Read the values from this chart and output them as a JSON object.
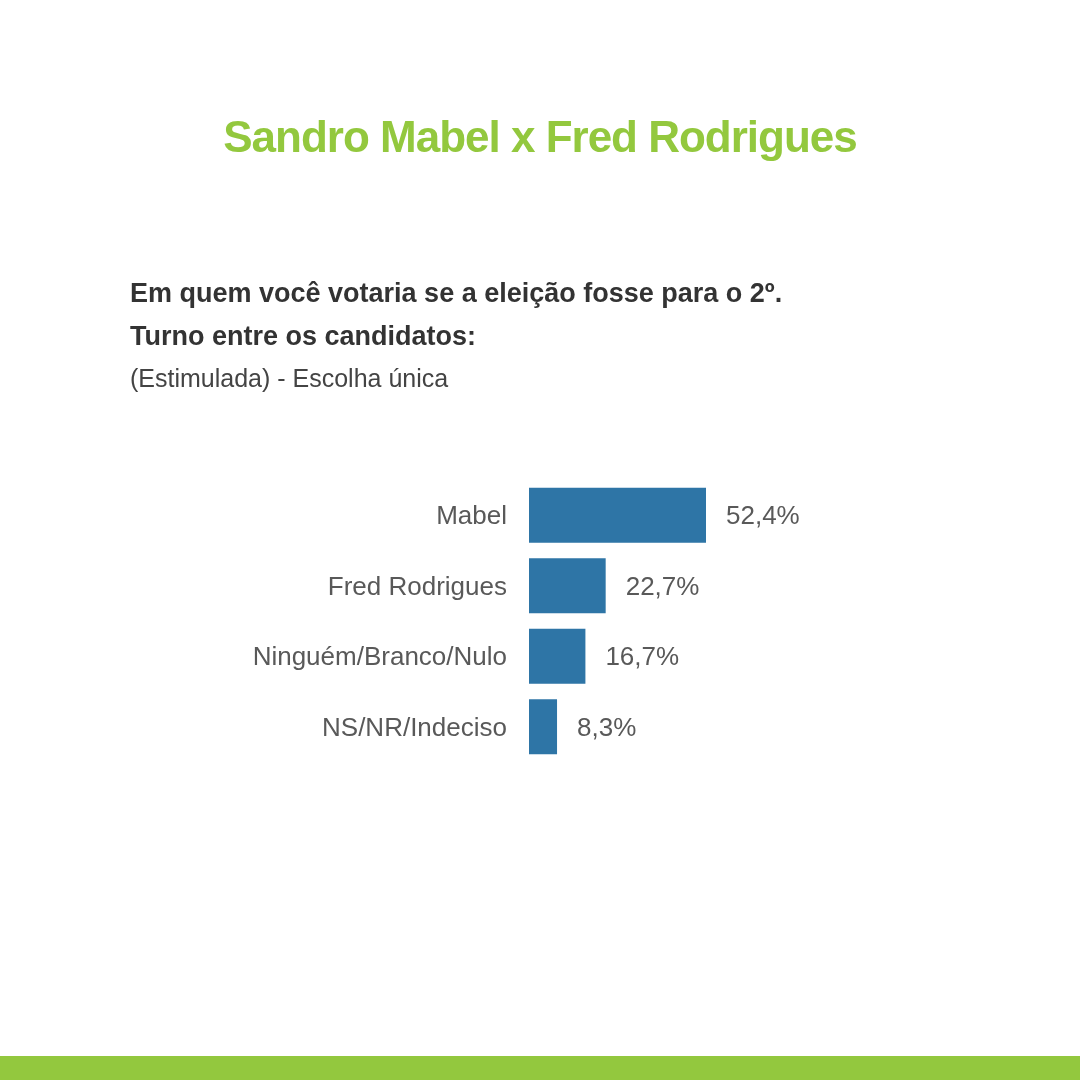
{
  "chart_data": {
    "type": "bar",
    "orientation": "horizontal",
    "title": "Sandro Mabel x Fred Rodrigues",
    "subtitle": "Em quem você votaria se a eleição fosse para o 2º. Turno entre os candidatos:",
    "annotations": [
      "(Estimulada) - Escolha única"
    ],
    "categories": [
      "Mabel",
      "Fred Rodrigues",
      "Ninguém/Branco/Nulo",
      "NS/NR/Indeciso"
    ],
    "values": [
      52.4,
      22.7,
      16.7,
      8.3
    ],
    "color": "#2e75a6",
    "value_labels": [
      "52,4%",
      "22,7%",
      "16,7%",
      "8,3%"
    ]
  }
}
